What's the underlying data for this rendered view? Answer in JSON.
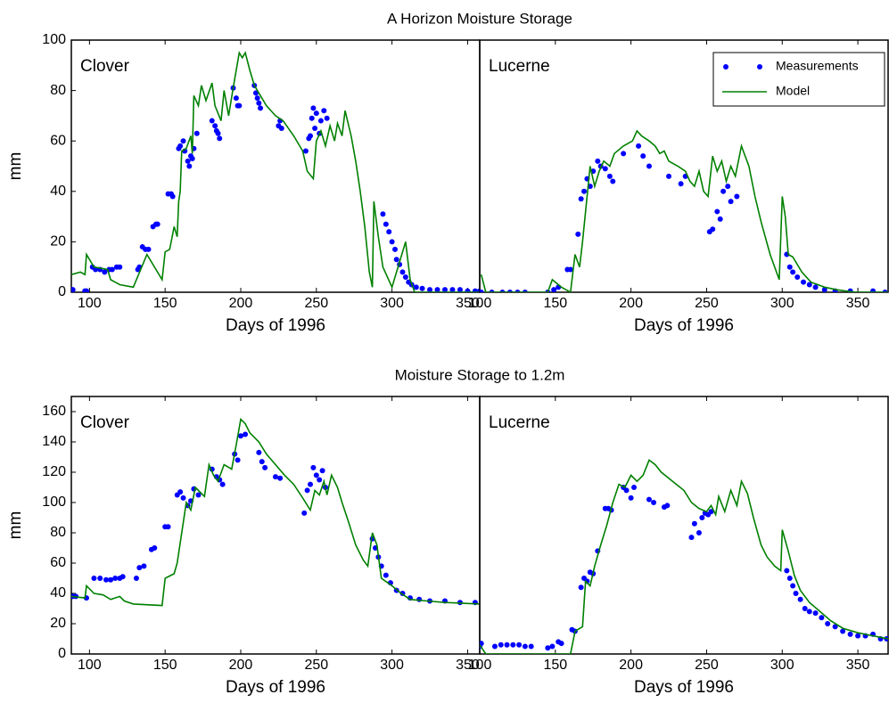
{
  "chart_data": [
    {
      "type": "line",
      "title": "A Horizon Moisture Storage",
      "label": "Clover",
      "xlabel": "Days of 1996",
      "ylabel": "mm",
      "xlim": [
        88,
        358
      ],
      "ylim": [
        0,
        100
      ],
      "xticks": [
        100,
        150,
        200,
        250,
        300,
        350
      ],
      "yticks": [
        0,
        20,
        40,
        60,
        80,
        100
      ],
      "series": [
        {
          "color": "#0000ff",
          "style": "markers",
          "x": [
            88,
            89,
            97,
            98,
            102,
            104,
            107,
            110,
            113,
            115,
            118,
            120,
            132,
            133,
            135,
            137,
            139,
            142,
            144,
            145,
            152,
            154,
            155,
            159,
            160,
            162,
            163,
            165,
            166,
            167,
            168,
            169,
            171,
            181,
            183,
            184,
            185,
            186,
            195,
            197,
            198,
            199,
            209,
            210,
            211,
            212,
            213,
            225,
            226,
            227,
            243,
            245,
            246,
            247,
            248,
            249,
            250,
            252,
            253,
            255,
            257,
            294,
            296,
            298,
            300,
            302,
            303,
            305,
            307,
            309,
            311,
            313,
            316,
            320,
            325,
            330,
            335,
            340,
            345,
            350,
            355,
            358
          ],
          "values": [
            1,
            1,
            0.5,
            0.5,
            10,
            9,
            9,
            8,
            9,
            9,
            10,
            10,
            9,
            10,
            18,
            17,
            17,
            26,
            27,
            27,
            39,
            39,
            38,
            57,
            58,
            60,
            56,
            52,
            50,
            54,
            53,
            57,
            63,
            68,
            66,
            64,
            63,
            61,
            81,
            77,
            74,
            74,
            82,
            79,
            77,
            75,
            73,
            66,
            68,
            65,
            56,
            61,
            62,
            69,
            73,
            65,
            71,
            63,
            68,
            72,
            69,
            31,
            27,
            24,
            20,
            17,
            13,
            11,
            8,
            6,
            4,
            3,
            2,
            1.5,
            1,
            1,
            1,
            1,
            1,
            0.5,
            0.5,
            0.5
          ]
        },
        {
          "color": "#008000",
          "style": "line",
          "x": [
            88,
            94,
            97,
            98,
            103,
            112,
            114,
            120,
            129,
            138,
            148,
            150,
            153,
            156,
            158,
            159,
            160,
            161,
            164,
            167,
            168,
            169,
            172,
            174,
            177,
            181,
            183,
            187,
            189,
            192,
            195,
            199,
            201,
            203,
            206,
            209,
            217,
            223,
            228,
            235,
            241,
            244,
            248,
            250,
            253,
            256,
            259,
            262,
            264,
            267,
            269,
            273,
            276,
            279,
            282,
            285,
            287,
            288,
            291,
            294,
            300,
            309,
            312,
            315,
            358
          ],
          "values": [
            7,
            8,
            7,
            15,
            10,
            9,
            5,
            3,
            2,
            15,
            5,
            16,
            17,
            26,
            22,
            36,
            40,
            56,
            57,
            62,
            55,
            78,
            74,
            82,
            76,
            83,
            74,
            68,
            80,
            70,
            81,
            95,
            93,
            95,
            88,
            82,
            74,
            70,
            68,
            62,
            56,
            48,
            45,
            60,
            64,
            58,
            66,
            60,
            67,
            62,
            72,
            62,
            52,
            40,
            26,
            8,
            2,
            36,
            22,
            10,
            2,
            20,
            5,
            0,
            0
          ]
        }
      ]
    },
    {
      "type": "line",
      "label": "Lucerne",
      "xlabel": "Days of 1996",
      "xlim": [
        100,
        370
      ],
      "ylim": [
        0,
        100
      ],
      "xticks": [
        100,
        150,
        200,
        250,
        300,
        350
      ],
      "legend": "upper right",
      "series": [
        {
          "name": "Measurements",
          "color": "#0000ff",
          "style": "markers",
          "x": [
            101,
            108,
            115,
            120,
            125,
            130,
            145,
            149,
            152,
            158,
            160,
            165,
            167,
            169,
            171,
            173,
            175,
            178,
            180,
            183,
            186,
            188,
            195,
            205,
            208,
            212,
            225,
            233,
            236,
            252,
            254,
            257,
            259,
            261,
            264,
            266,
            270,
            303,
            305,
            307,
            310,
            314,
            318,
            322,
            328,
            335,
            345,
            360,
            368
          ],
          "values": [
            0,
            0,
            0,
            0,
            0,
            0,
            0,
            1,
            2,
            9,
            9,
            23,
            37,
            40,
            45,
            42,
            48,
            52,
            50,
            49,
            46,
            44,
            55,
            58,
            54,
            50,
            46,
            43,
            46,
            24,
            25,
            32,
            29,
            40,
            42,
            36,
            38,
            15,
            10,
            8,
            6,
            4,
            3,
            2,
            1,
            0.5,
            0.5,
            0.5,
            0
          ]
        },
        {
          "name": "Model",
          "color": "#008000",
          "style": "line",
          "x": [
            101,
            104,
            145,
            148,
            154,
            160,
            163,
            166,
            168,
            171,
            173,
            176,
            179,
            182,
            186,
            189,
            195,
            201,
            204,
            207,
            212,
            216,
            219,
            222,
            225,
            231,
            236,
            239,
            242,
            245,
            248,
            251,
            254,
            257,
            260,
            263,
            266,
            269,
            273,
            278,
            282,
            286,
            292,
            298,
            300,
            302,
            304,
            307,
            313,
            319,
            328,
            336,
            348,
            370
          ],
          "values": [
            7,
            0,
            0,
            5,
            2,
            0,
            15,
            10,
            20,
            38,
            50,
            42,
            48,
            52,
            50,
            55,
            58,
            60,
            64,
            62,
            60,
            58,
            55,
            56,
            52,
            50,
            48,
            44,
            42,
            48,
            40,
            38,
            54,
            48,
            52,
            44,
            50,
            46,
            58,
            50,
            38,
            28,
            15,
            5,
            38,
            30,
            15,
            14,
            8,
            4,
            2,
            1,
            0,
            0
          ]
        }
      ]
    },
    {
      "type": "line",
      "title": "Moisture Storage to 1.2m",
      "label": "Clover",
      "xlabel": "Days of 1996",
      "ylabel": "mm",
      "xlim": [
        88,
        358
      ],
      "ylim": [
        0,
        170
      ],
      "xticks": [
        100,
        150,
        200,
        250,
        300,
        350
      ],
      "yticks": [
        0,
        20,
        40,
        60,
        80,
        100,
        120,
        140,
        160
      ],
      "series": [
        {
          "color": "#0000ff",
          "style": "markers",
          "x": [
            89,
            91,
            98,
            103,
            107,
            111,
            114,
            117,
            120,
            122,
            131,
            133,
            136,
            141,
            143,
            150,
            152,
            158,
            160,
            162,
            165,
            167,
            169,
            172,
            181,
            184,
            186,
            188,
            196,
            198,
            200,
            203,
            212,
            214,
            216,
            223,
            226,
            242,
            244,
            246,
            248,
            250,
            252,
            254,
            256,
            287,
            289,
            291,
            293,
            296,
            299,
            303,
            307,
            312,
            318,
            325,
            335,
            345,
            355
          ],
          "values": [
            38,
            38,
            37,
            50,
            50,
            49,
            49,
            50,
            50,
            51,
            50,
            57,
            58,
            69,
            70,
            84,
            84,
            105,
            107,
            103,
            98,
            101,
            109,
            105,
            122,
            117,
            115,
            112,
            132,
            128,
            144,
            145,
            133,
            127,
            123,
            117,
            116,
            93,
            108,
            112,
            123,
            118,
            115,
            121,
            110,
            76,
            70,
            64,
            58,
            52,
            47,
            42,
            40,
            37,
            36,
            35,
            35,
            34,
            34
          ]
        },
        {
          "color": "#008000",
          "style": "line",
          "x": [
            88,
            97,
            98,
            103,
            109,
            114,
            120,
            123,
            129,
            148,
            150,
            156,
            158,
            161,
            164,
            167,
            170,
            176,
            179,
            182,
            185,
            189,
            194,
            197,
            200,
            203,
            206,
            212,
            217,
            223,
            229,
            235,
            241,
            246,
            249,
            252,
            255,
            257,
            260,
            264,
            267,
            271,
            276,
            281,
            284,
            287,
            290,
            293,
            300,
            306,
            312,
            323,
            335,
            358
          ],
          "values": [
            38,
            37,
            45,
            40,
            39,
            36,
            38,
            35,
            33,
            32,
            50,
            53,
            60,
            80,
            100,
            95,
            110,
            104,
            125,
            118,
            114,
            125,
            122,
            138,
            155,
            152,
            146,
            140,
            132,
            125,
            118,
            112,
            103,
            95,
            108,
            105,
            114,
            105,
            118,
            110,
            100,
            88,
            72,
            62,
            58,
            80,
            72,
            50,
            45,
            40,
            36,
            35,
            34,
            33
          ]
        }
      ]
    },
    {
      "type": "line",
      "label": "Lucerne",
      "xlabel": "Days of 1996",
      "xlim": [
        100,
        370
      ],
      "ylim": [
        0,
        170
      ],
      "xticks": [
        100,
        150,
        200,
        250,
        300,
        350
      ],
      "series": [
        {
          "color": "#0000ff",
          "style": "markers",
          "x": [
            100,
            101,
            110,
            114,
            118,
            122,
            126,
            130,
            134,
            145,
            148,
            152,
            154,
            161,
            163,
            167,
            169,
            171,
            173,
            175,
            178,
            183,
            185,
            187,
            195,
            197,
            200,
            202,
            212,
            215,
            222,
            224,
            240,
            242,
            245,
            247,
            249,
            251,
            253,
            303,
            305,
            307,
            309,
            312,
            315,
            318,
            322,
            326,
            330,
            335,
            340,
            345,
            350,
            355,
            360,
            365,
            369
          ],
          "values": [
            5,
            7,
            5,
            6,
            6,
            6,
            6,
            5,
            5,
            4,
            5,
            8,
            7,
            16,
            15,
            44,
            50,
            48,
            54,
            53,
            68,
            96,
            96,
            95,
            110,
            108,
            103,
            110,
            102,
            100,
            97,
            98,
            77,
            86,
            80,
            90,
            93,
            92,
            94,
            55,
            50,
            45,
            40,
            36,
            30,
            28,
            27,
            24,
            20,
            18,
            15,
            13,
            12,
            12,
            13,
            10,
            10
          ]
        },
        {
          "color": "#008000",
          "style": "line",
          "x": [
            100,
            104,
            160,
            163,
            168,
            170,
            173,
            176,
            180,
            184,
            188,
            192,
            196,
            200,
            204,
            208,
            212,
            216,
            220,
            225,
            230,
            235,
            240,
            245,
            250,
            253,
            256,
            258,
            262,
            266,
            270,
            273,
            277,
            281,
            286,
            290,
            295,
            299,
            300,
            304,
            308,
            312,
            318,
            325,
            332,
            340,
            350,
            360,
            370
          ],
          "values": [
            6,
            0,
            0,
            15,
            18,
            48,
            45,
            58,
            72,
            85,
            100,
            112,
            110,
            118,
            114,
            118,
            128,
            125,
            120,
            116,
            112,
            108,
            100,
            96,
            94,
            98,
            92,
            104,
            94,
            108,
            98,
            114,
            106,
            90,
            72,
            64,
            58,
            55,
            82,
            68,
            52,
            42,
            34,
            28,
            22,
            17,
            14,
            12,
            10
          ]
        }
      ]
    }
  ]
}
